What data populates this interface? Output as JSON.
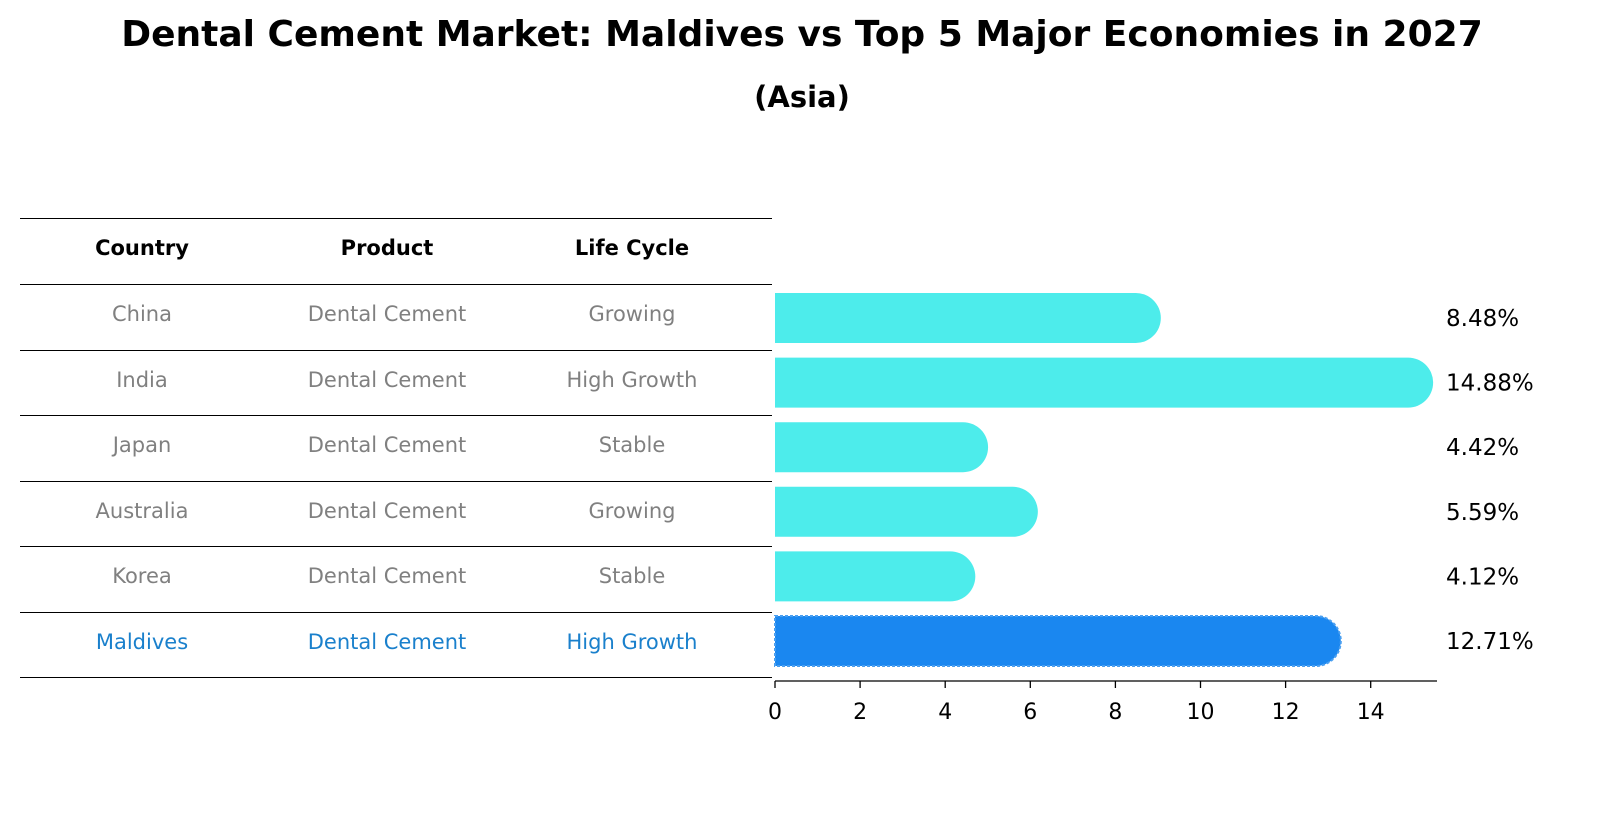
{
  "title": "Dental Cement Market: Maldives vs Top 5 Major Economies in 2027",
  "subtitle": "(Asia)",
  "table": {
    "headers": [
      "Country",
      "Product",
      "Life Cycle"
    ],
    "rows": [
      {
        "country": "China",
        "product": "Dental Cement",
        "life_cycle": "Growing",
        "highlight": false
      },
      {
        "country": "India",
        "product": "Dental Cement",
        "life_cycle": "High Growth",
        "highlight": false
      },
      {
        "country": "Japan",
        "product": "Dental Cement",
        "life_cycle": "Stable",
        "highlight": false
      },
      {
        "country": "Australia",
        "product": "Dental Cement",
        "life_cycle": "Growing",
        "highlight": false
      },
      {
        "country": "Korea",
        "product": "Dental Cement",
        "life_cycle": "Stable",
        "highlight": false
      },
      {
        "country": "Maldives",
        "product": "Dental Cement",
        "life_cycle": "High Growth",
        "highlight": true
      }
    ]
  },
  "chart_data": {
    "type": "bar",
    "orientation": "horizontal",
    "title": "Dental Cement Market: Maldives vs Top 5 Major Economies in 2027",
    "subtitle": "(Asia)",
    "categories": [
      "China",
      "India",
      "Japan",
      "Australia",
      "Korea",
      "Maldives"
    ],
    "values": [
      8.48,
      14.88,
      4.42,
      5.59,
      4.12,
      12.71
    ],
    "data_labels": [
      "8.48%",
      "14.88%",
      "4.42%",
      "5.59%",
      "4.12%",
      "12.71%"
    ],
    "xticks": [
      0,
      2,
      4,
      6,
      8,
      10,
      12,
      14
    ],
    "xlim": [
      0,
      15.6
    ],
    "xlabel": "",
    "ylabel": "",
    "grid": false,
    "colors": {
      "default": "#4deceb",
      "highlight": "#1a87f0",
      "highlight_edge": "#4a9ff0"
    }
  }
}
